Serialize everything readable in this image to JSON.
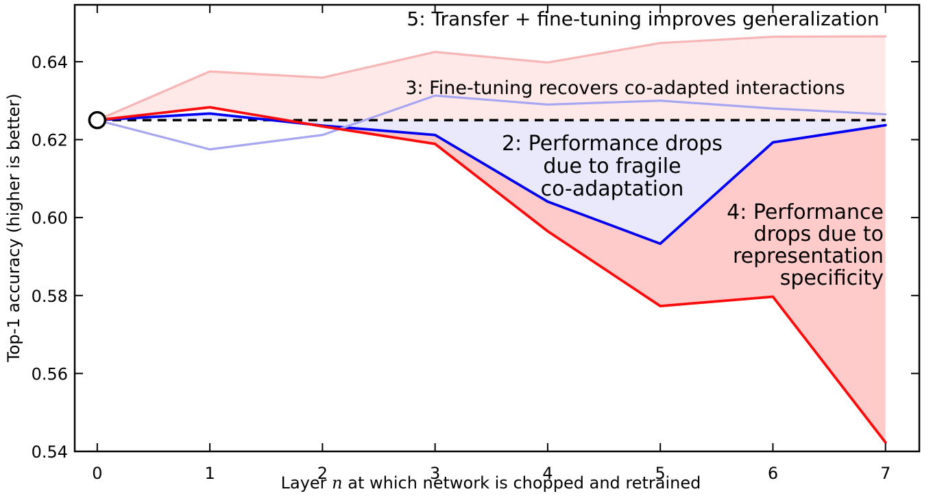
{
  "chart_data": {
    "type": "line",
    "x": [
      0,
      1,
      2,
      3,
      4,
      5,
      6,
      7
    ],
    "series": [
      {
        "name": "baseline-dashed",
        "style": "dashed",
        "color": "#000000",
        "values": [
          0.625,
          0.625,
          0.625,
          0.625,
          0.625,
          0.625,
          0.625,
          0.625
        ]
      },
      {
        "name": "2-performance-drops-fragile-coadaptation",
        "style": "solid",
        "color": "#0202f2",
        "values": [
          0.625,
          0.6267,
          0.6236,
          0.6212,
          0.6041,
          0.5933,
          0.6193,
          0.6237
        ]
      },
      {
        "name": "3-finetuning-recovers-coadapted-interactions",
        "style": "solid",
        "color": "#a6a6f2",
        "values": [
          0.625,
          0.6175,
          0.6212,
          0.6313,
          0.629,
          0.63,
          0.628,
          0.6265
        ]
      },
      {
        "name": "4-performance-drops-representation-specificity",
        "style": "solid",
        "color": "#fb0b0b",
        "values": [
          0.625,
          0.6283,
          0.6234,
          0.6189,
          0.5965,
          0.5773,
          0.5797,
          0.5423
        ]
      },
      {
        "name": "5-transfer-plus-finetuning-improves-generalization",
        "style": "solid",
        "color": "#f7b5b5",
        "values": [
          0.625,
          0.6375,
          0.6359,
          0.6425,
          0.6398,
          0.6448,
          0.6464,
          0.6465
        ]
      }
    ],
    "marker": {
      "x": 0,
      "y": 0.625,
      "shape": "open-circle",
      "color": "#000000"
    },
    "fills": [
      {
        "name": "red-band-pink-to-red",
        "between": [
          "5-transfer-plus-finetuning-improves-generalization",
          "4-performance-drops-representation-specificity"
        ],
        "color": "rgba(255,0,0,0.09)"
      },
      {
        "name": "red-band-blue-to-red",
        "between": [
          "2-performance-drops-fragile-coadaptation",
          "4-performance-drops-representation-specificity"
        ],
        "x_from": 2,
        "color": "rgba(255,0,0,0.13)"
      },
      {
        "name": "blue-band-baseline-to-blue",
        "between": [
          "baseline-dashed",
          "2-performance-drops-fragile-coadaptation"
        ],
        "color": "#e9e9fb"
      }
    ],
    "xlim": [
      -0.2,
      7.3
    ],
    "ylim": [
      0.54,
      0.6546
    ],
    "xticks": [
      "0",
      "1",
      "2",
      "3",
      "4",
      "5",
      "6",
      "7"
    ],
    "yticks": [
      "0.54",
      "0.56",
      "0.58",
      "0.60",
      "0.62",
      "0.64"
    ],
    "ytick_values": [
      0.54,
      0.56,
      0.58,
      0.6,
      0.62,
      0.64
    ],
    "xtick_values": [
      0,
      1,
      2,
      3,
      4,
      5,
      6,
      7
    ],
    "grid": false,
    "legend_position": "none (inline annotations)",
    "ylabel": "Top-1 accuracy (higher is better)",
    "xlabel_parts": {
      "pre": "Layer ",
      "var": "n",
      "post": " at which network is chopped and retrained"
    }
  },
  "annotations": {
    "a5": {
      "text": "5: Transfer + fine-tuning improves generalization"
    },
    "a3": {
      "text": "3: Fine-tuning recovers co-adapted interactions"
    },
    "a2": {
      "lines": [
        "2: Performance drops",
        "due to fragile",
        "co-adaptation"
      ]
    },
    "a4": {
      "lines": [
        "4: Performance",
        "drops due to",
        "representation",
        "specificity"
      ]
    }
  },
  "colors": {
    "frame": "#000000",
    "background": "#ffffff"
  }
}
